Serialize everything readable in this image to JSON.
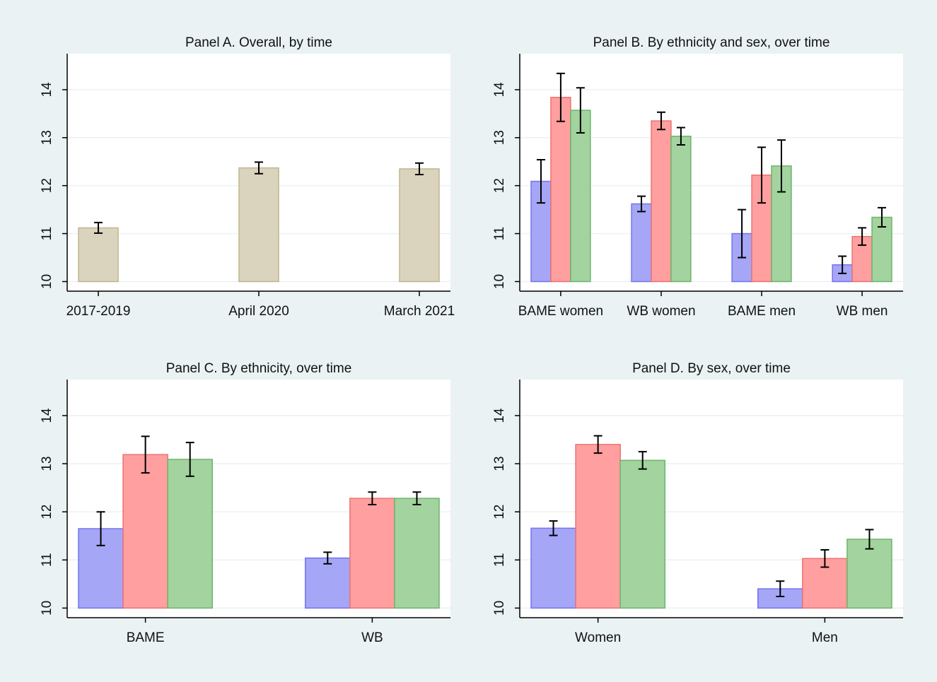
{
  "chart_data": [
    {
      "type": "bar",
      "title": "Panel A. Overall, by time",
      "categories": [
        "2017-2019",
        "April 2020",
        "March 2021"
      ],
      "values": [
        11.12,
        12.37,
        12.35
      ],
      "errors": [
        0.11,
        0.12,
        0.12
      ],
      "color": "#dad3bd",
      "edge_color": "#c2b690",
      "ylim": [
        9.8,
        14.75
      ],
      "yticks": [
        10,
        11,
        12,
        13,
        14
      ],
      "grid": true
    },
    {
      "type": "bar",
      "title": "Panel B. By ethnicity and sex, over time",
      "categories": [
        "BAME women",
        "WB women",
        "BAME men",
        "WB men"
      ],
      "series": [
        {
          "color": "#a6a6f7",
          "edge_color": "#7373ee",
          "values": [
            12.09,
            11.62,
            11.0,
            10.35
          ],
          "errors": [
            0.45,
            0.16,
            0.5,
            0.18
          ]
        },
        {
          "color": "#ff9f9f",
          "edge_color": "#ee7272",
          "values": [
            13.84,
            13.35,
            12.22,
            10.94
          ],
          "errors": [
            0.5,
            0.18,
            0.58,
            0.18
          ]
        },
        {
          "color": "#a3d39e",
          "edge_color": "#6cb56a",
          "values": [
            13.57,
            13.03,
            12.41,
            11.34
          ],
          "errors": [
            0.47,
            0.18,
            0.54,
            0.2
          ]
        }
      ],
      "ylim": [
        9.8,
        14.75
      ],
      "yticks": [
        10,
        11,
        12,
        13,
        14
      ],
      "grid": true
    },
    {
      "type": "bar",
      "title": "Panel C. By ethnicity, over time",
      "categories": [
        "BAME",
        "WB"
      ],
      "series": [
        {
          "color": "#a6a6f7",
          "edge_color": "#7373ee",
          "values": [
            11.65,
            11.04
          ],
          "errors": [
            0.35,
            0.12
          ]
        },
        {
          "color": "#ff9f9f",
          "edge_color": "#ee7272",
          "values": [
            13.19,
            12.28
          ],
          "errors": [
            0.38,
            0.13
          ]
        },
        {
          "color": "#a3d39e",
          "edge_color": "#6cb56a",
          "values": [
            13.09,
            12.28
          ],
          "errors": [
            0.35,
            0.13
          ]
        }
      ],
      "ylim": [
        9.8,
        14.75
      ],
      "yticks": [
        10,
        11,
        12,
        13,
        14
      ],
      "grid": true
    },
    {
      "type": "bar",
      "title": "Panel D. By sex, over time",
      "categories": [
        "Women",
        "Men"
      ],
      "series": [
        {
          "color": "#a6a6f7",
          "edge_color": "#7373ee",
          "values": [
            11.66,
            10.4
          ],
          "errors": [
            0.15,
            0.16
          ]
        },
        {
          "color": "#ff9f9f",
          "edge_color": "#ee7272",
          "values": [
            13.4,
            11.03
          ],
          "errors": [
            0.18,
            0.18
          ]
        },
        {
          "color": "#a3d39e",
          "edge_color": "#6cb56a",
          "values": [
            13.07,
            11.43
          ],
          "errors": [
            0.18,
            0.2
          ]
        }
      ],
      "ylim": [
        9.8,
        14.75
      ],
      "yticks": [
        10,
        11,
        12,
        13,
        14
      ],
      "grid": true
    }
  ]
}
